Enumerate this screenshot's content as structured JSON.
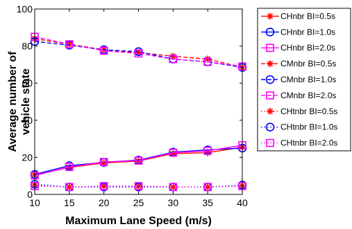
{
  "chart_data": {
    "type": "line",
    "xlabel": "Maximum Lane Speed (m/s)",
    "ylabel": "Average number of vehicle state",
    "ylabel_lines": [
      "Average number of",
      "vehicle state"
    ],
    "xlim": [
      10,
      40
    ],
    "ylim": [
      0,
      100
    ],
    "x_ticks": [
      10,
      15,
      20,
      25,
      30,
      35,
      40
    ],
    "y_ticks": [
      0,
      20,
      40,
      60,
      80,
      100
    ],
    "grid": false,
    "legend_position": "outside-right",
    "x": [
      10,
      15,
      20,
      25,
      30,
      35,
      40
    ],
    "series": [
      {
        "name": "CHnbr BI=0.5s",
        "color": "#ff0000",
        "line_style": "solid",
        "marker": "asterisk",
        "values": [
          10.5,
          14.5,
          17.0,
          18.0,
          22.0,
          22.5,
          25.5
        ]
      },
      {
        "name": "CHnbr BI=1.0s",
        "color": "#0000ff",
        "line_style": "solid",
        "marker": "circle",
        "values": [
          10.8,
          15.5,
          17.3,
          18.5,
          22.8,
          24.0,
          25.0
        ]
      },
      {
        "name": "CHnbr BI=2.0s",
        "color": "#ff00ff",
        "line_style": "solid",
        "marker": "square",
        "values": [
          10.2,
          14.8,
          17.5,
          18.2,
          22.5,
          23.5,
          26.5
        ]
      },
      {
        "name": "CMnbr BI=0.5s",
        "color": "#ff0000",
        "line_style": "dashed",
        "marker": "asterisk",
        "values": [
          84.0,
          81.0,
          78.0,
          76.5,
          74.5,
          73.0,
          68.5
        ]
      },
      {
        "name": "CMnbr BI=1.0s",
        "color": "#0000ff",
        "line_style": "dashed",
        "marker": "circle",
        "values": [
          82.5,
          80.5,
          78.0,
          77.0,
          73.0,
          71.5,
          68.5
        ]
      },
      {
        "name": "CMnbr BI=2.0s",
        "color": "#ff00ff",
        "line_style": "dashed",
        "marker": "square",
        "values": [
          85.0,
          81.0,
          77.5,
          76.0,
          73.0,
          71.5,
          69.0
        ]
      },
      {
        "name": "CHtnbr BI=0.5s",
        "color": "#ff0000",
        "line_style": "dotted",
        "marker": "asterisk",
        "values": [
          5.0,
          4.0,
          4.5,
          4.5,
          4.0,
          4.0,
          4.5
        ]
      },
      {
        "name": "CHtnbr BI=1.0s",
        "color": "#0000ff",
        "line_style": "dotted",
        "marker": "circle",
        "values": [
          5.5,
          4.0,
          4.0,
          4.0,
          4.0,
          4.0,
          5.0
        ]
      },
      {
        "name": "CHtnbr BI=2.0s",
        "color": "#ff00ff",
        "line_style": "dotted",
        "marker": "square",
        "values": [
          4.5,
          4.0,
          4.5,
          4.5,
          4.0,
          4.0,
          4.5
        ]
      }
    ]
  }
}
